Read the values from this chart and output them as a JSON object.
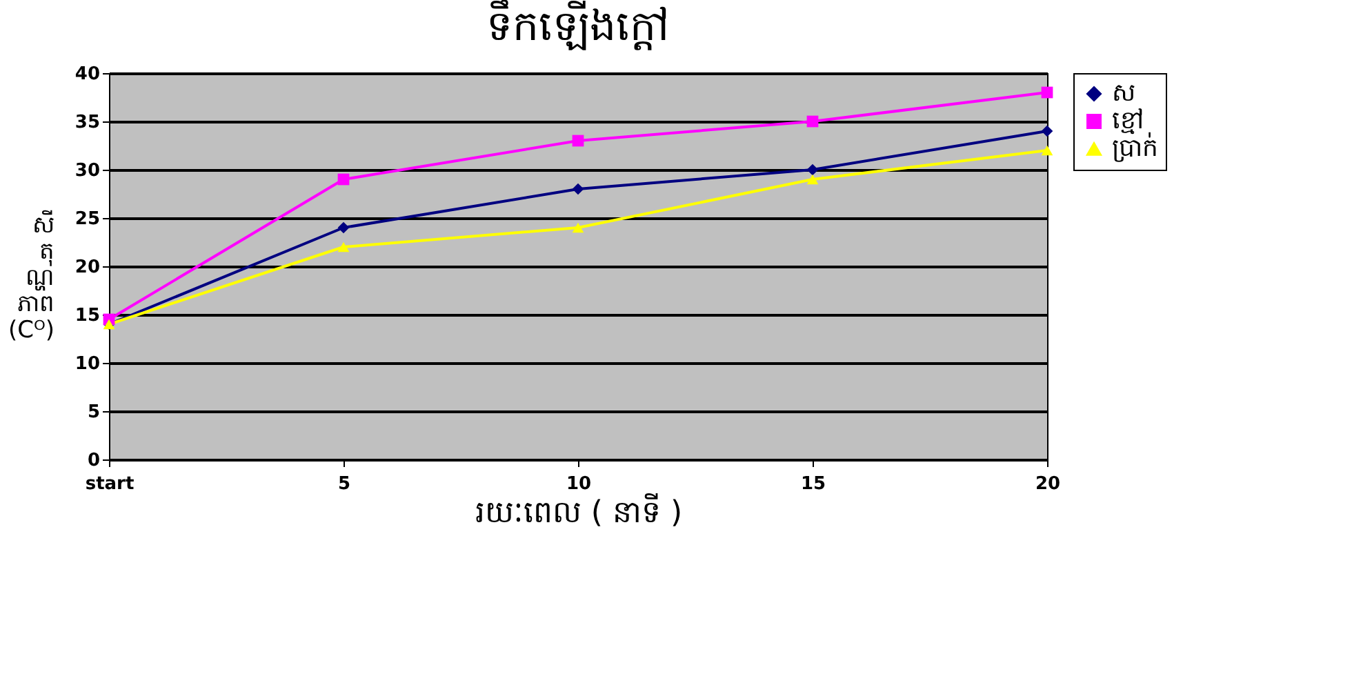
{
  "chart_data": {
    "type": "line",
    "title": "ទឹកឡើងក្តៅ",
    "xlabel": "រយៈពេល ( នាទី )",
    "ylabel": "សី\nតុ\nណ្ហ\nភាព\n(Cᴼ)",
    "categories": [
      "start",
      "5",
      "10",
      "15",
      "20"
    ],
    "ylim": [
      0,
      40
    ],
    "yticks": [
      0,
      5,
      10,
      15,
      20,
      25,
      30,
      35,
      40
    ],
    "grid": "y",
    "legend": "right",
    "series": [
      {
        "name": "ស",
        "color": "#000080",
        "marker": "diamond",
        "values": [
          14,
          24,
          28,
          30,
          34
        ]
      },
      {
        "name": "ខ្មៅ",
        "color": "#ff00ff",
        "marker": "square",
        "values": [
          14.5,
          29,
          33,
          35,
          38
        ]
      },
      {
        "name": "ប្រាក់",
        "color": "#ffff00",
        "marker": "triangle",
        "values": [
          14,
          22,
          24,
          29,
          32
        ]
      }
    ]
  }
}
